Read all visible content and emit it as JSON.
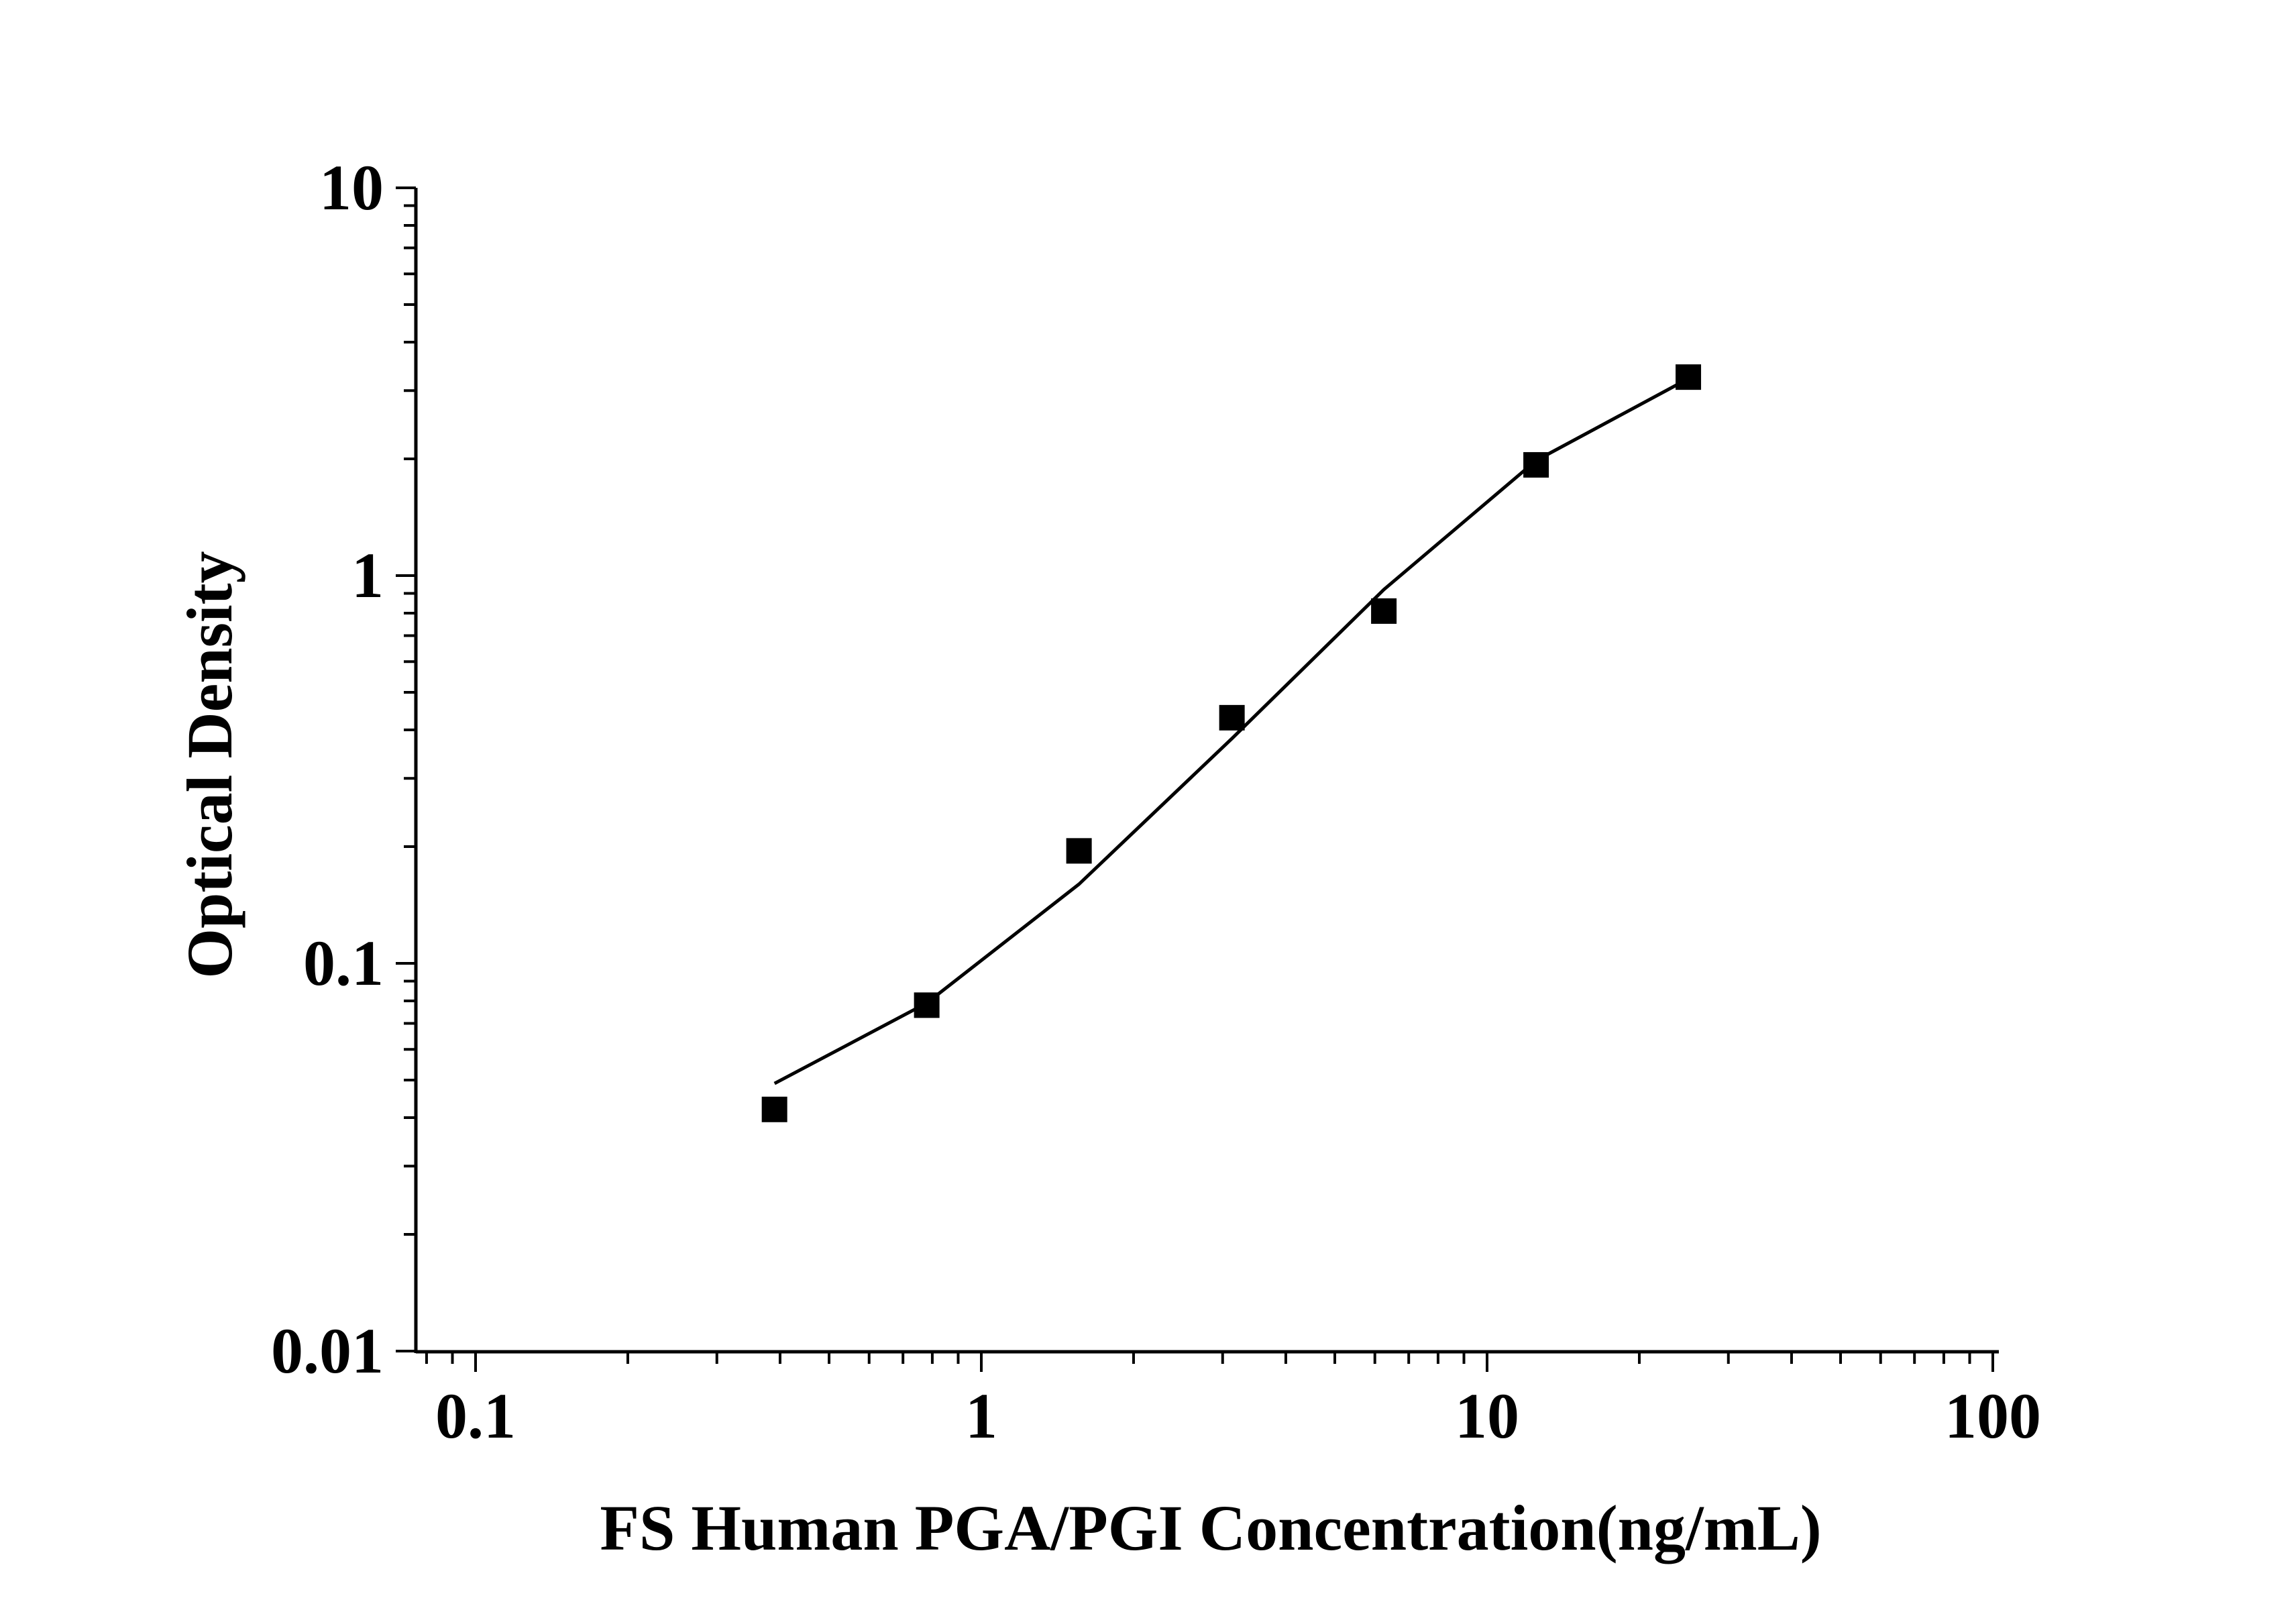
{
  "chart_data": {
    "type": "scatter",
    "title": "",
    "xlabel": "FS Human PGA/PGI Concentration(ng/mL)",
    "ylabel": "Optical Density",
    "x_scale": "log",
    "y_scale": "log",
    "xlim": [
      0.08,
      100
    ],
    "ylim": [
      0.01,
      10
    ],
    "x_ticks": [
      {
        "value": 0.1,
        "label": "0.1"
      },
      {
        "value": 1,
        "label": "1"
      },
      {
        "value": 10,
        "label": "10"
      },
      {
        "value": 100,
        "label": "100"
      }
    ],
    "y_ticks": [
      {
        "value": 0.01,
        "label": "0.01"
      },
      {
        "value": 0.1,
        "label": "0.1"
      },
      {
        "value": 1,
        "label": "1"
      },
      {
        "value": 10,
        "label": "10"
      }
    ],
    "grid": false,
    "legend": "none",
    "series": [
      {
        "kind": "points",
        "marker": "square",
        "color": "#000000",
        "x": [
          0.39,
          0.78,
          1.56,
          3.13,
          6.25,
          12.5,
          25
        ],
        "y": [
          0.042,
          0.078,
          0.195,
          0.43,
          0.81,
          1.93,
          3.25
        ]
      },
      {
        "kind": "fit-line",
        "color": "#000000",
        "x": [
          0.39,
          0.78,
          1.56,
          3.13,
          6.25,
          12.5,
          25
        ],
        "y": [
          0.049,
          0.079,
          0.16,
          0.38,
          0.92,
          1.98,
          3.22
        ]
      }
    ]
  }
}
